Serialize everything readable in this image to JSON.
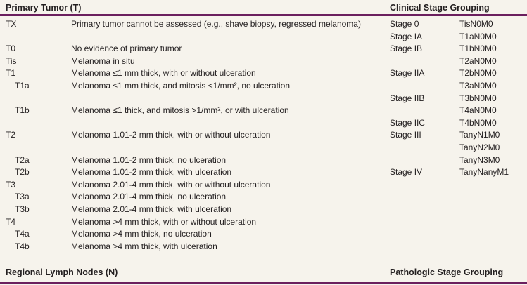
{
  "headers": {
    "primary_tumor": "Primary Tumor (T)",
    "clinical_stage": "Clinical Stage Grouping",
    "regional_nodes": "Regional Lymph Nodes (N)",
    "pathologic_stage": "Pathologic Stage Grouping"
  },
  "accent_color": "#6b1f5e",
  "rows": [
    {
      "code": "TX",
      "sub": false,
      "desc": "Primary tumor cannot be assessed (e.g., shave biopsy, regressed melanoma)",
      "stage": "Stage 0",
      "tnm": "TisN0M0"
    },
    {
      "code": "",
      "sub": false,
      "desc": "",
      "stage": "Stage IA",
      "tnm": "T1aN0M0"
    },
    {
      "code": "T0",
      "sub": false,
      "desc": "No evidence of primary tumor",
      "stage": "Stage IB",
      "tnm": "T1bN0M0"
    },
    {
      "code": "Tis",
      "sub": false,
      "desc": "Melanoma in situ",
      "stage": "",
      "tnm": "T2aN0M0"
    },
    {
      "code": "T1",
      "sub": false,
      "desc": "Melanoma ≤1 mm thick, with or without ulceration",
      "stage": "Stage IIA",
      "tnm": "T2bN0M0"
    },
    {
      "code": "T1a",
      "sub": true,
      "desc": "Melanoma ≤1 mm thick, and mitosis <1/mm², no ulceration",
      "stage": "",
      "tnm": "T3aN0M0"
    },
    {
      "code": "",
      "sub": false,
      "desc": "",
      "stage": "Stage IIB",
      "tnm": "T3bN0M0"
    },
    {
      "code": "T1b",
      "sub": true,
      "desc": "Melanoma ≤1 thick, and mitosis >1/mm², or with ulceration",
      "stage": "",
      "tnm": "T4aN0M0"
    },
    {
      "code": "",
      "sub": false,
      "desc": "",
      "stage": "Stage IIC",
      "tnm": "T4bN0M0"
    },
    {
      "code": "T2",
      "sub": false,
      "desc": "Melanoma 1.01-2 mm thick, with or without ulceration",
      "stage": "Stage III",
      "tnm": "TanyN1M0"
    },
    {
      "code": "",
      "sub": false,
      "desc": "",
      "stage": "",
      "tnm": "TanyN2M0"
    },
    {
      "code": "T2a",
      "sub": true,
      "desc": "Melanoma 1.01-2 mm thick, no ulceration",
      "stage": "",
      "tnm": "TanyN3M0"
    },
    {
      "code": "T2b",
      "sub": true,
      "desc": "Melanoma 1.01-2 mm thick, with ulceration",
      "stage": "Stage IV",
      "tnm": "TanyNanyM1"
    },
    {
      "code": "T3",
      "sub": false,
      "desc": "Melanoma 2.01-4 mm thick, with or without ulceration",
      "stage": "",
      "tnm": ""
    },
    {
      "code": "T3a",
      "sub": true,
      "desc": "Melanoma 2.01-4 mm thick, no ulceration",
      "stage": "",
      "tnm": ""
    },
    {
      "code": "T3b",
      "sub": true,
      "desc": "Melanoma 2.01-4 mm thick, with ulceration",
      "stage": "",
      "tnm": ""
    },
    {
      "code": "T4",
      "sub": false,
      "desc": "Melanoma >4 mm thick, with or without ulceration",
      "stage": "",
      "tnm": ""
    },
    {
      "code": "T4a",
      "sub": true,
      "desc": "Melanoma >4 mm thick, no ulceration",
      "stage": "",
      "tnm": ""
    },
    {
      "code": "T4b",
      "sub": true,
      "desc": "Melanoma >4 mm thick, with ulceration",
      "stage": "",
      "tnm": ""
    }
  ]
}
